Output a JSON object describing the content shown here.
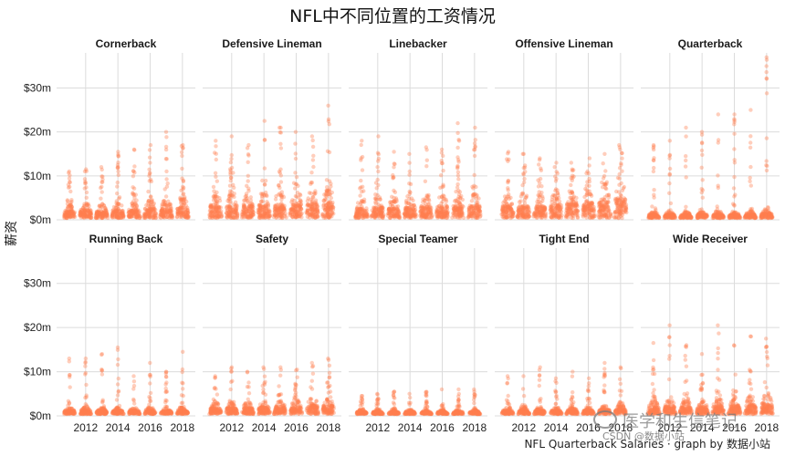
{
  "title": "NFL中不同位置的工资情况",
  "ylabel": "薪资",
  "caption": "NFL Quarterback Salaries · graph by 数据小站",
  "watermark": "医学和生信笔记",
  "watermark_sub": "CSDN @数据小站",
  "colors": {
    "points": "#ff7f50",
    "grid": "#dcdcdc",
    "panel_bg": "#ffffff"
  },
  "chart_data": {
    "type": "scatter",
    "facets": [
      "Cornerback",
      "Defensive Lineman",
      "Linebacker",
      "Offensive Lineman",
      "Quarterback",
      "Running Back",
      "Safety",
      "Special Teamer",
      "Tight End",
      "Wide Receiver"
    ],
    "years": [
      2011,
      2012,
      2013,
      2014,
      2015,
      2016,
      2017,
      2018
    ],
    "x_ticks": [
      2012,
      2014,
      2016,
      2018
    ],
    "y_ticks": [
      0,
      10000000,
      20000000,
      30000000
    ],
    "y_tick_labels": [
      "$0m",
      "$10m",
      "$20m",
      "$30m"
    ],
    "ylim": [
      0,
      38000000
    ],
    "xlim": [
      2010.2,
      2018.8
    ],
    "max_salary_m": {
      "Cornerback": [
        11,
        11.5,
        12,
        15.5,
        16,
        17,
        20,
        17
      ],
      "Defensive Lineman": [
        18,
        19,
        17,
        22.5,
        21,
        20,
        19,
        26
      ],
      "Linebacker": [
        18,
        19,
        15.5,
        15,
        16.5,
        16,
        22,
        21
      ],
      "Offensive Lineman": [
        15.5,
        15,
        14,
        13,
        13,
        14,
        15,
        17
      ],
      "Quarterback": [
        17,
        18,
        21,
        20,
        24,
        24,
        25,
        37
      ],
      "Running Back": [
        13,
        13,
        14,
        15.5,
        9,
        12,
        10,
        14.5
      ],
      "Safety": [
        9,
        11,
        10,
        11,
        11,
        10.5,
        12,
        13
      ],
      "Special Teamer": [
        4.5,
        5,
        5.5,
        5,
        5.5,
        6,
        6,
        6
      ],
      "Tight End": [
        9,
        9,
        11,
        8.5,
        10,
        8.5,
        12,
        11
      ],
      "Wide Receiver": [
        16.5,
        20.5,
        16,
        14,
        20.5,
        16,
        18,
        17.5
      ]
    },
    "bulk_salary_m": {
      "Cornerback": [
        3,
        3.5,
        3,
        3.5,
        3.5,
        4,
        4,
        4.5
      ],
      "Defensive Lineman": [
        5,
        5.5,
        5,
        5.5,
        5.5,
        6,
        6,
        6.5
      ],
      "Linebacker": [
        4,
        4.5,
        4,
        4.5,
        5,
        5,
        5,
        5.5
      ],
      "Offensive Lineman": [
        5,
        5,
        5,
        5.5,
        6,
        6.5,
        7,
        8
      ],
      "Quarterback": [
        1.5,
        1.5,
        1.5,
        1.5,
        1.5,
        1.5,
        1.5,
        2
      ],
      "Running Back": [
        1.5,
        1.5,
        1.5,
        1.5,
        1.5,
        1.5,
        1.5,
        1.5
      ],
      "Safety": [
        2.5,
        2.5,
        2.5,
        3,
        3,
        3,
        3.5,
        3.5
      ],
      "Special Teamer": [
        1,
        1,
        1,
        1,
        1,
        1,
        1,
        1
      ],
      "Tight End": [
        1.5,
        1.5,
        1.5,
        1.5,
        1.5,
        1.5,
        2,
        2
      ],
      "Wide Receiver": [
        3,
        3,
        3,
        3,
        3.5,
        3.5,
        4,
        4.5
      ]
    },
    "grid": true,
    "legend": "none"
  }
}
